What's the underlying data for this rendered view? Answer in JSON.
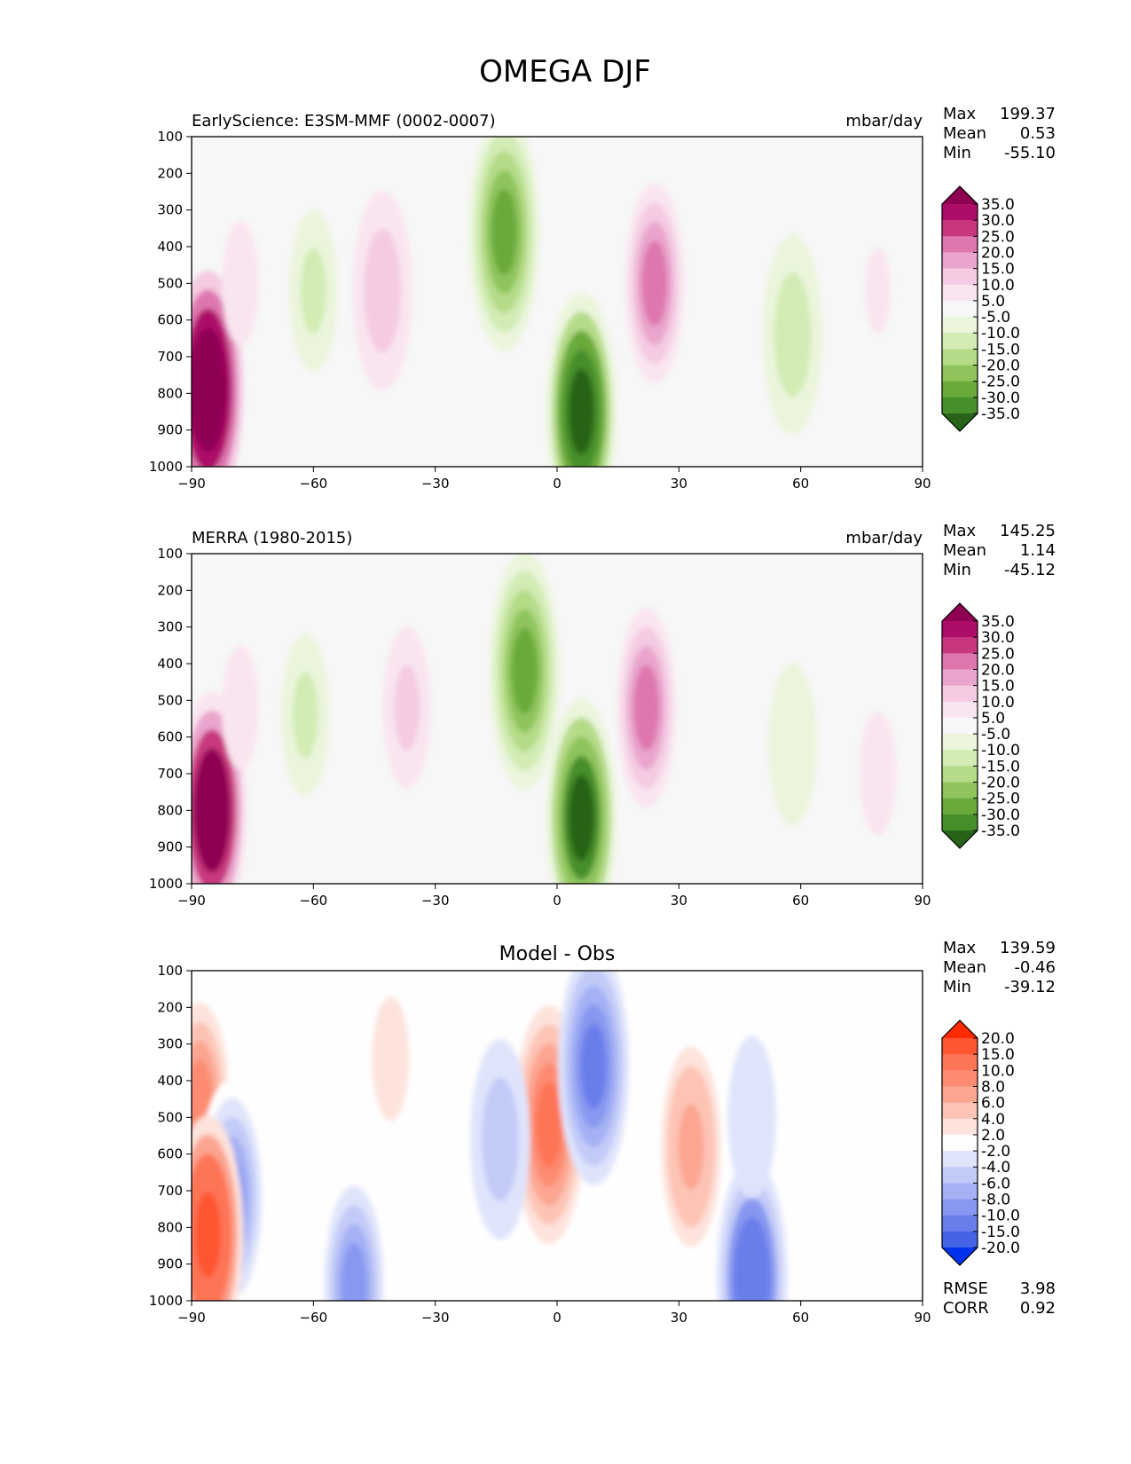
{
  "figure": {
    "title": "OMEGA DJF"
  },
  "chart_data": [
    {
      "type": "contour",
      "panel": "model",
      "title_left": "EarlyScience: E3SM-MMF (0002-0007)",
      "title_center": "",
      "units": "mbar/day",
      "xlabel": "",
      "ylabel": "",
      "xlim": [
        -90,
        90
      ],
      "ylim": [
        1000,
        100
      ],
      "y_inverted": true,
      "x_ticks": [
        -90,
        -60,
        -30,
        0,
        30,
        60,
        90
      ],
      "x_tick_labels": [
        "−90",
        "−60",
        "−30",
        "0",
        "30",
        "60",
        "90"
      ],
      "y_ticks": [
        100,
        200,
        300,
        400,
        500,
        600,
        700,
        800,
        900,
        1000
      ],
      "y_tick_labels": [
        "100",
        "200",
        "300",
        "400",
        "500",
        "600",
        "700",
        "800",
        "900",
        "1000"
      ],
      "stats": [
        {
          "label": "Max",
          "value": "199.37"
        },
        {
          "label": "Mean",
          "value": "0.53"
        },
        {
          "label": "Min",
          "value": "-55.10"
        }
      ],
      "colorbar": {
        "levels": [
          "35.0",
          "30.0",
          "25.0",
          "20.0",
          "15.0",
          "10.0",
          "5.0",
          "-5.0",
          "-10.0",
          "-15.0",
          "-20.0",
          "-25.0",
          "-30.0",
          "-35.0"
        ],
        "colors": [
          "#8e0152",
          "#ad0d69",
          "#c8377e",
          "#de77ae",
          "#eaa5cc",
          "#f4cbe3",
          "#f9e5f0",
          "#f7f7f7",
          "#eaf5db",
          "#d2ecb4",
          "#b5db89",
          "#8fc45c",
          "#69aa3b",
          "#478f2b",
          "#276419"
        ]
      },
      "features": [
        {
          "lat": -86,
          "p": 790,
          "value": 50
        },
        {
          "lat": -13,
          "p": 360,
          "value": -28
        },
        {
          "lat": 6,
          "p": 850,
          "value": -42
        },
        {
          "lat": 24,
          "p": 500,
          "value": 22
        },
        {
          "lat": -43,
          "p": 520,
          "value": 13
        },
        {
          "lat": -60,
          "p": 520,
          "value": -12
        },
        {
          "lat": 58,
          "p": 640,
          "value": -14
        },
        {
          "lat": -78,
          "p": 500,
          "value": 7
        },
        {
          "lat": 79,
          "p": 520,
          "value": 6
        }
      ]
    },
    {
      "type": "contour",
      "panel": "obs",
      "title_left": "MERRA (1980-2015)",
      "title_center": "",
      "units": "mbar/day",
      "xlabel": "",
      "ylabel": "",
      "xlim": [
        -90,
        90
      ],
      "ylim": [
        1000,
        100
      ],
      "y_inverted": true,
      "x_ticks": [
        -90,
        -60,
        -30,
        0,
        30,
        60,
        90
      ],
      "x_tick_labels": [
        "−90",
        "−60",
        "−30",
        "0",
        "30",
        "60",
        "90"
      ],
      "y_ticks": [
        100,
        200,
        300,
        400,
        500,
        600,
        700,
        800,
        900,
        1000
      ],
      "y_tick_labels": [
        "100",
        "200",
        "300",
        "400",
        "500",
        "600",
        "700",
        "800",
        "900",
        "1000"
      ],
      "stats": [
        {
          "label": "Max",
          "value": "145.25"
        },
        {
          "label": "Mean",
          "value": "1.14"
        },
        {
          "label": "Min",
          "value": "-45.12"
        }
      ],
      "colorbar": {
        "levels": [
          "35.0",
          "30.0",
          "25.0",
          "20.0",
          "15.0",
          "10.0",
          "5.0",
          "-5.0",
          "-10.0",
          "-15.0",
          "-20.0",
          "-25.0",
          "-30.0",
          "-35.0"
        ],
        "colors": [
          "#8e0152",
          "#ad0d69",
          "#c8377e",
          "#de77ae",
          "#eaa5cc",
          "#f4cbe3",
          "#f9e5f0",
          "#f7f7f7",
          "#eaf5db",
          "#d2ecb4",
          "#b5db89",
          "#8fc45c",
          "#69aa3b",
          "#478f2b",
          "#276419"
        ]
      },
      "features": [
        {
          "lat": -85,
          "p": 800,
          "value": 45
        },
        {
          "lat": -8,
          "p": 420,
          "value": -26
        },
        {
          "lat": 6,
          "p": 820,
          "value": -38
        },
        {
          "lat": 22,
          "p": 520,
          "value": 24
        },
        {
          "lat": -37,
          "p": 520,
          "value": 12
        },
        {
          "lat": -62,
          "p": 540,
          "value": -11
        },
        {
          "lat": 58,
          "p": 620,
          "value": -10
        },
        {
          "lat": -78,
          "p": 520,
          "value": 8
        },
        {
          "lat": 79,
          "p": 700,
          "value": 7
        }
      ]
    },
    {
      "type": "contour",
      "panel": "diff",
      "title_left": "",
      "title_center": "Model - Obs",
      "units": "",
      "xlabel": "",
      "ylabel": "",
      "xlim": [
        -90,
        90
      ],
      "ylim": [
        1000,
        100
      ],
      "y_inverted": true,
      "x_ticks": [
        -90,
        -60,
        -30,
        0,
        30,
        60,
        90
      ],
      "x_tick_labels": [
        "−90",
        "−60",
        "−30",
        "0",
        "30",
        "60",
        "90"
      ],
      "y_ticks": [
        100,
        200,
        300,
        400,
        500,
        600,
        700,
        800,
        900,
        1000
      ],
      "y_tick_labels": [
        "100",
        "200",
        "300",
        "400",
        "500",
        "600",
        "700",
        "800",
        "900",
        "1000"
      ],
      "stats": [
        {
          "label": "Max",
          "value": "139.59"
        },
        {
          "label": "Mean",
          "value": "-0.46"
        },
        {
          "label": "Min",
          "value": "-39.12"
        }
      ],
      "metrics": [
        {
          "label": "RMSE",
          "value": "3.98"
        },
        {
          "label": "CORR",
          "value": "0.92"
        }
      ],
      "colorbar": {
        "levels": [
          "20.0",
          "15.0",
          "10.0",
          "8.0",
          "6.0",
          "4.0",
          "2.0",
          "-2.0",
          "-4.0",
          "-6.0",
          "-8.0",
          "-10.0",
          "-15.0",
          "-20.0"
        ],
        "colors": [
          "#ff2a00",
          "#ff5533",
          "#fe7456",
          "#fd8b72",
          "#fca591",
          "#fdc4b5",
          "#fde3dc",
          "#fefefe",
          "#dfe4fb",
          "#c2cbf8",
          "#a5b1f4",
          "#8898f0",
          "#6a7eeb",
          "#4463e6",
          "#0033ee"
        ]
      },
      "features": [
        {
          "lat": -2,
          "p": 520,
          "value": 11
        },
        {
          "lat": 9,
          "p": 360,
          "value": -12
        },
        {
          "lat": -14,
          "p": 560,
          "value": -6
        },
        {
          "lat": 33,
          "p": 580,
          "value": 7
        },
        {
          "lat": 48,
          "p": 940,
          "value": -14
        },
        {
          "lat": -50,
          "p": 960,
          "value": -9
        },
        {
          "lat": -88,
          "p": 460,
          "value": 9
        },
        {
          "lat": -80,
          "p": 720,
          "value": -10
        },
        {
          "lat": -86,
          "p": 820,
          "value": 18
        },
        {
          "lat": 48,
          "p": 500,
          "value": -4
        },
        {
          "lat": -41,
          "p": 340,
          "value": 3
        }
      ]
    }
  ]
}
